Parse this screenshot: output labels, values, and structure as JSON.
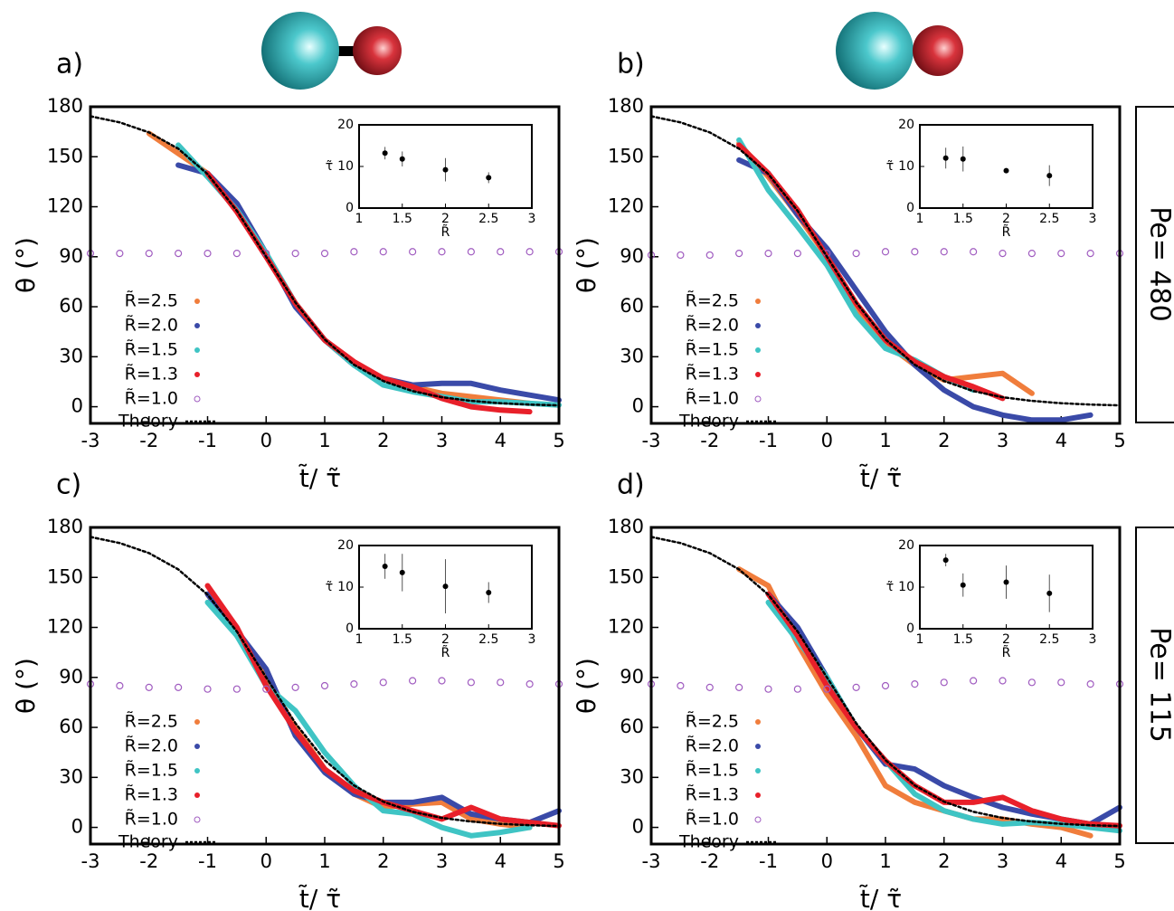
{
  "row_labels": [
    "Pe= 480",
    "Pe= 115"
  ],
  "chart_data": [
    {
      "type": "line",
      "panel_label": "a)",
      "xlabel": "t̃/ τ̃",
      "ylabel": "θ (°)",
      "x": [
        -3,
        -2.5,
        -2,
        -1.5,
        -1,
        -0.5,
        0,
        0.5,
        1,
        1.5,
        2,
        2.5,
        3,
        3.5,
        4,
        4.5,
        5
      ],
      "xlim": [
        -3,
        5
      ],
      "xticks": [
        -3,
        -2,
        -1,
        0,
        1,
        2,
        3,
        4,
        5
      ],
      "ylim": [
        -10,
        180
      ],
      "yticks": [
        0,
        30,
        60,
        90,
        120,
        150,
        180
      ],
      "series": [
        {
          "name": "R̃=2.5",
          "color": "#f07d3c",
          "style": "line",
          "values": [
            null,
            null,
            164,
            152,
            140,
            118,
            90,
            62,
            40,
            25,
            16,
            12,
            8,
            6,
            4,
            2,
            null
          ]
        },
        {
          "name": "R̃=2.0",
          "color": "#3a4aa8",
          "style": "line",
          "values": [
            null,
            null,
            null,
            145,
            140,
            122,
            92,
            60,
            40,
            25,
            17,
            13,
            14,
            14,
            10,
            7,
            4
          ]
        },
        {
          "name": "R̃=1.5",
          "color": "#3fc4c4",
          "style": "line",
          "values": [
            null,
            null,
            null,
            157,
            138,
            118,
            92,
            62,
            40,
            25,
            13,
            9,
            6,
            3,
            3,
            2,
            1
          ]
        },
        {
          "name": "R̃=1.3",
          "color": "#e8202a",
          "style": "line",
          "values": [
            null,
            null,
            null,
            null,
            140,
            117,
            90,
            62,
            40,
            27,
            17,
            12,
            5,
            0,
            -2,
            -3,
            null
          ]
        },
        {
          "name": "R̃=1.0",
          "color": "#a05cc0",
          "style": "markers",
          "values": [
            92,
            92,
            92,
            92,
            92,
            92,
            92,
            92,
            92,
            93,
            93,
            93,
            93,
            93,
            93,
            93,
            93
          ]
        },
        {
          "name": "Theory",
          "color": "#000000",
          "style": "dotted",
          "values": [
            174.3,
            170.6,
            164.6,
            154.8,
            139.6,
            117.5,
            90,
            62.5,
            40.4,
            25.2,
            15.4,
            9.4,
            5.7,
            3.5,
            2.1,
            1.3,
            0.8
          ]
        }
      ],
      "inset": {
        "type": "scatter",
        "xlabel": "R̃",
        "ylabel": "τ̃",
        "x": [
          1.3,
          1.5,
          2,
          2.5
        ],
        "values": [
          13.2,
          11.8,
          9.2,
          7.3
        ],
        "errors": [
          1.5,
          1.8,
          2.8,
          1.3
        ],
        "xlim": [
          1,
          3
        ],
        "xticks": [
          1,
          1.5,
          2,
          2.5,
          3
        ],
        "ylim": [
          0,
          20
        ],
        "yticks": [
          0,
          10,
          20
        ]
      }
    },
    {
      "type": "line",
      "panel_label": "b)",
      "xlabel": "t̃/ τ̃",
      "ylabel": "θ (°)",
      "x": [
        -3,
        -2.5,
        -2,
        -1.5,
        -1,
        -0.5,
        0,
        0.5,
        1,
        1.5,
        2,
        2.5,
        3,
        3.5,
        4,
        4.5,
        5
      ],
      "xlim": [
        -3,
        5
      ],
      "xticks": [
        -3,
        -2,
        -1,
        0,
        1,
        2,
        3,
        4,
        5
      ],
      "ylim": [
        -10,
        180
      ],
      "yticks": [
        0,
        30,
        60,
        90,
        120,
        150,
        180
      ],
      "series": [
        {
          "name": "R̃=2.5",
          "color": "#f07d3c",
          "style": "line",
          "values": [
            null,
            null,
            null,
            158,
            138,
            115,
            90,
            60,
            38,
            25,
            16,
            18,
            20,
            8,
            null,
            null,
            null
          ]
        },
        {
          "name": "R̃=2.0",
          "color": "#3a4aa8",
          "style": "line",
          "values": [
            null,
            null,
            null,
            148,
            140,
            115,
            95,
            70,
            45,
            25,
            10,
            0,
            -5,
            -8,
            -8,
            -5,
            null
          ]
        },
        {
          "name": "R̃=1.5",
          "color": "#3fc4c4",
          "style": "line",
          "values": [
            null,
            null,
            null,
            160,
            130,
            108,
            85,
            55,
            35,
            28,
            18,
            10,
            null,
            null,
            null,
            null,
            null
          ]
        },
        {
          "name": "R̃=1.3",
          "color": "#e8202a",
          "style": "line",
          "values": [
            null,
            null,
            null,
            157,
            140,
            118,
            90,
            62,
            40,
            27,
            18,
            12,
            5,
            null,
            null,
            null,
            null
          ]
        },
        {
          "name": "R̃=1.0",
          "color": "#a05cc0",
          "style": "markers",
          "values": [
            91,
            91,
            91,
            92,
            92,
            92,
            92,
            92,
            93,
            93,
            93,
            93,
            92,
            92,
            92,
            92,
            92
          ]
        },
        {
          "name": "Theory",
          "color": "#000000",
          "style": "dotted",
          "values": [
            174.3,
            170.6,
            164.6,
            154.8,
            139.6,
            117.5,
            90,
            62.5,
            40.4,
            25.2,
            15.4,
            9.4,
            5.7,
            3.5,
            2.1,
            1.3,
            0.8
          ]
        }
      ],
      "inset": {
        "type": "scatter",
        "xlabel": "R̃",
        "ylabel": "τ̃",
        "x": [
          1.3,
          1.5,
          2,
          2.5
        ],
        "values": [
          12,
          11.8,
          9,
          7.8
        ],
        "errors": [
          2.5,
          3,
          0.5,
          2.5
        ],
        "xlim": [
          1,
          3
        ],
        "xticks": [
          1,
          1.5,
          2,
          2.5,
          3
        ],
        "ylim": [
          0,
          20
        ],
        "yticks": [
          0,
          10,
          20
        ]
      }
    },
    {
      "type": "line",
      "panel_label": "c)",
      "xlabel": "t̃/ τ̃",
      "ylabel": "θ (°)",
      "x": [
        -3,
        -2.5,
        -2,
        -1.5,
        -1,
        -0.5,
        0,
        0.5,
        1,
        1.5,
        2,
        2.5,
        3,
        3.5,
        4,
        4.5,
        5
      ],
      "xlim": [
        -3,
        5
      ],
      "xticks": [
        -3,
        -2,
        -1,
        0,
        1,
        2,
        3,
        4,
        5
      ],
      "ylim": [
        -10,
        180
      ],
      "yticks": [
        0,
        30,
        60,
        90,
        120,
        150,
        180
      ],
      "series": [
        {
          "name": "R̃=2.5",
          "color": "#f07d3c",
          "style": "line",
          "values": [
            null,
            null,
            null,
            null,
            140,
            115,
            90,
            60,
            35,
            20,
            12,
            14,
            15,
            5,
            2,
            0,
            null
          ]
        },
        {
          "name": "R̃=2.0",
          "color": "#3a4aa8",
          "style": "line",
          "values": [
            null,
            null,
            null,
            null,
            140,
            118,
            95,
            55,
            33,
            20,
            15,
            15,
            18,
            8,
            5,
            3,
            10
          ]
        },
        {
          "name": "R̃=1.5",
          "color": "#3fc4c4",
          "style": "line",
          "values": [
            null,
            null,
            null,
            null,
            135,
            115,
            85,
            70,
            45,
            25,
            10,
            8,
            0,
            -5,
            -3,
            0,
            null
          ]
        },
        {
          "name": "R̃=1.3",
          "color": "#e8202a",
          "style": "line",
          "values": [
            null,
            null,
            null,
            null,
            145,
            120,
            85,
            58,
            35,
            22,
            15,
            10,
            5,
            12,
            5,
            3,
            1
          ]
        },
        {
          "name": "R̃=1.0",
          "color": "#a05cc0",
          "style": "markers",
          "values": [
            86,
            85,
            84,
            84,
            83,
            83,
            83,
            84,
            85,
            86,
            87,
            88,
            88,
            87,
            87,
            86,
            86
          ]
        },
        {
          "name": "Theory",
          "color": "#000000",
          "style": "dotted",
          "values": [
            174.3,
            170.6,
            164.6,
            154.8,
            139.6,
            117.5,
            90,
            62.5,
            40.4,
            25.2,
            15.4,
            9.4,
            5.7,
            3.5,
            2.1,
            1.3,
            0.8
          ]
        }
      ],
      "inset": {
        "type": "scatter",
        "xlabel": "R̃",
        "ylabel": "τ̃",
        "x": [
          1.3,
          1.5,
          2,
          2.5
        ],
        "values": [
          15,
          13.5,
          10.2,
          8.7
        ],
        "errors": [
          3,
          4.5,
          6.5,
          2.5
        ],
        "xlim": [
          1,
          3
        ],
        "xticks": [
          1,
          1.5,
          2,
          2.5,
          3
        ],
        "ylim": [
          0,
          20
        ],
        "yticks": [
          0,
          10,
          20
        ]
      }
    },
    {
      "type": "line",
      "panel_label": "d)",
      "xlabel": "t̃/ τ̃",
      "ylabel": "θ (°)",
      "x": [
        -3,
        -2.5,
        -2,
        -1.5,
        -1,
        -0.5,
        0,
        0.5,
        1,
        1.5,
        2,
        2.5,
        3,
        3.5,
        4,
        4.5,
        5
      ],
      "xlim": [
        -3,
        5
      ],
      "xticks": [
        -3,
        -2,
        -1,
        0,
        1,
        2,
        3,
        4,
        5
      ],
      "ylim": [
        -10,
        180
      ],
      "yticks": [
        0,
        30,
        60,
        90,
        120,
        150,
        180
      ],
      "series": [
        {
          "name": "R̃=2.5",
          "color": "#f07d3c",
          "style": "line",
          "values": [
            null,
            null,
            null,
            155,
            145,
            110,
            80,
            55,
            25,
            15,
            10,
            5,
            5,
            2,
            0,
            -5,
            null
          ]
        },
        {
          "name": "R̃=2.0",
          "color": "#3a4aa8",
          "style": "line",
          "values": [
            null,
            null,
            null,
            null,
            140,
            120,
            90,
            60,
            38,
            35,
            25,
            18,
            12,
            8,
            5,
            2,
            12
          ]
        },
        {
          "name": "R̃=1.5",
          "color": "#3fc4c4",
          "style": "line",
          "values": [
            null,
            null,
            null,
            null,
            135,
            112,
            90,
            60,
            40,
            20,
            10,
            5,
            2,
            3,
            2,
            0,
            -2
          ]
        },
        {
          "name": "R̃=1.3",
          "color": "#e8202a",
          "style": "line",
          "values": [
            null,
            null,
            null,
            null,
            140,
            115,
            85,
            60,
            40,
            25,
            15,
            15,
            18,
            10,
            5,
            2,
            1
          ]
        },
        {
          "name": "R̃=1.0",
          "color": "#a05cc0",
          "style": "markers",
          "values": [
            86,
            85,
            84,
            84,
            83,
            83,
            83,
            84,
            85,
            86,
            87,
            88,
            88,
            87,
            87,
            86,
            86
          ]
        },
        {
          "name": "Theory",
          "color": "#000000",
          "style": "dotted",
          "values": [
            174.3,
            170.6,
            164.6,
            154.8,
            139.6,
            117.5,
            90,
            62.5,
            40.4,
            25.2,
            15.4,
            9.4,
            5.7,
            3.5,
            2.1,
            1.3,
            0.8
          ]
        }
      ],
      "inset": {
        "type": "scatter",
        "xlabel": "R̃",
        "ylabel": "τ̃",
        "x": [
          1.3,
          1.5,
          2,
          2.5
        ],
        "values": [
          16.5,
          10.5,
          11.2,
          8.5
        ],
        "errors": [
          1.5,
          2.8,
          4,
          4.5
        ],
        "xlim": [
          1,
          3
        ],
        "xticks": [
          1,
          1.5,
          2,
          2.5,
          3
        ],
        "ylim": [
          0,
          20
        ],
        "yticks": [
          0,
          10,
          20
        ]
      }
    }
  ]
}
